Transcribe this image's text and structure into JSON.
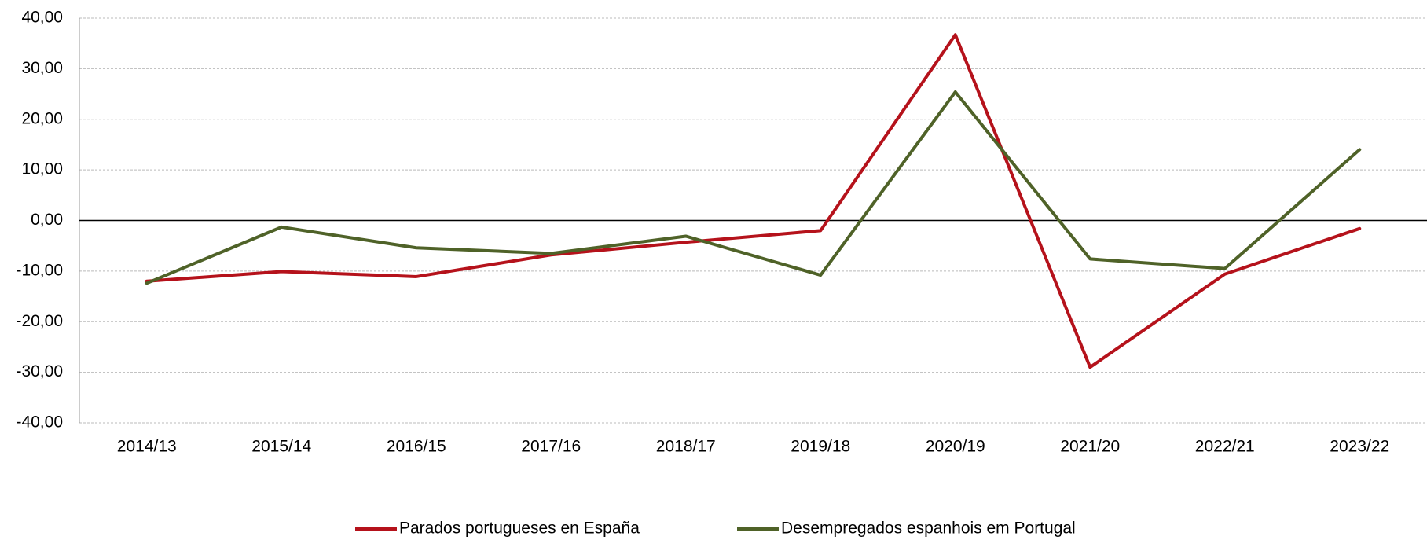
{
  "chart_data": {
    "type": "line",
    "categories": [
      "2014/13",
      "2015/14",
      "2016/15",
      "2017/16",
      "2018/17",
      "2019/18",
      "2020/19",
      "2021/20",
      "2022/21",
      "2023/22"
    ],
    "series": [
      {
        "name": "Parados portugueses en España",
        "color": "#b5121b",
        "values": [
          -12.0,
          -10.1,
          -11.1,
          -6.8,
          -4.3,
          -2.0,
          36.7,
          -29.0,
          -10.6,
          -1.6
        ]
      },
      {
        "name": "Desempregados espanhois em Portugal",
        "color": "#4f6228",
        "values": [
          -12.4,
          -1.3,
          -5.4,
          -6.5,
          -3.1,
          -10.8,
          25.4,
          -7.6,
          -9.5,
          14.0
        ]
      }
    ],
    "ylim": [
      -40,
      40
    ],
    "yticks": [
      {
        "value": -40,
        "label": "-40,00"
      },
      {
        "value": -30,
        "label": "-30,00"
      },
      {
        "value": -20,
        "label": "-20,00"
      },
      {
        "value": -10,
        "label": "-10,00"
      },
      {
        "value": 0,
        "label": "0,00"
      },
      {
        "value": 10,
        "label": "10,00"
      },
      {
        "value": 20,
        "label": "20,00"
      },
      {
        "value": 30,
        "label": "30,00"
      },
      {
        "value": 40,
        "label": "40,00"
      }
    ],
    "grid": true,
    "legend": "bottom"
  }
}
